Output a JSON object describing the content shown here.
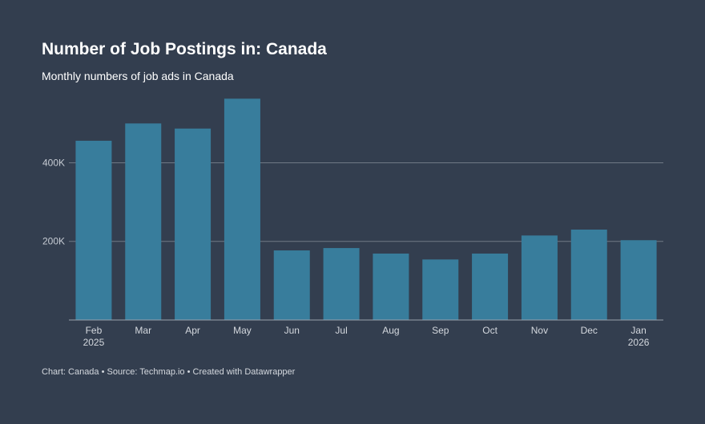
{
  "header": {
    "title": "Number of Job Postings in: Canada",
    "subtitle": "Monthly numbers of job ads in Canada"
  },
  "footer": {
    "chart_label": "Chart: Canada",
    "separator": "•",
    "source": "Source: Techmap.io",
    "created_with": "Created with Datawrapper"
  },
  "colors": {
    "background": "#333e4f",
    "bar": "#387d9c",
    "grid": "#6f7885",
    "text": "#ffffff"
  },
  "chart_data": {
    "type": "bar",
    "title": "Number of Job Postings in: Canada",
    "subtitle": "Monthly numbers of job ads in Canada",
    "categories": [
      "Feb",
      "Mar",
      "Apr",
      "May",
      "Jun",
      "Jul",
      "Aug",
      "Sep",
      "Oct",
      "Nov",
      "Dec",
      "Jan"
    ],
    "category_years": [
      "2025",
      "",
      "",
      "",
      "",
      "",
      "",
      "",
      "",
      "",
      "",
      "2026"
    ],
    "values": [
      456000,
      500000,
      487000,
      563000,
      177000,
      183000,
      169000,
      154000,
      169000,
      215000,
      230000,
      203000
    ],
    "ylim": [
      0,
      580000
    ],
    "yticks": [
      200000,
      400000
    ],
    "ytick_labels": [
      "200K",
      "400K"
    ],
    "xlabel": "",
    "ylabel": "",
    "grid": true
  }
}
